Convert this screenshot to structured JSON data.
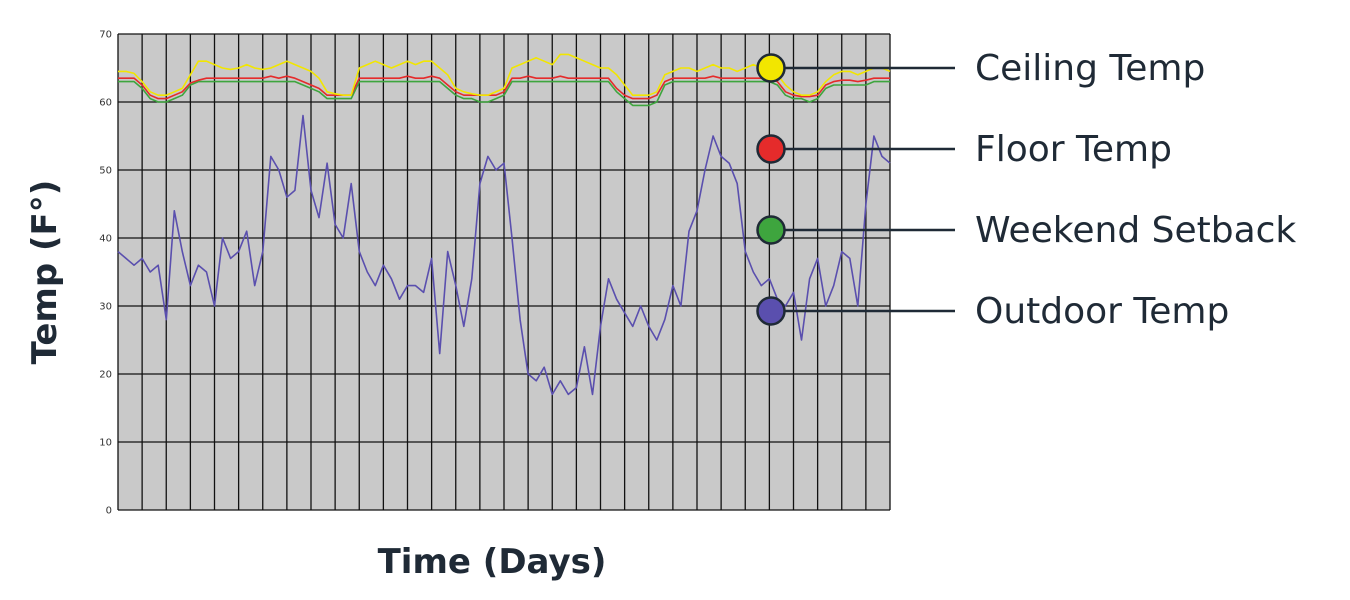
{
  "chart_data": {
    "type": "line",
    "title": "",
    "xlabel": "Time (Days)",
    "ylabel": "Temp (F°)",
    "ylim": [
      0,
      70
    ],
    "yticks": [
      0,
      10,
      20,
      30,
      40,
      50,
      60,
      70
    ],
    "x": [
      0,
      1,
      2,
      3,
      4,
      5,
      6,
      7,
      8,
      9,
      10,
      11,
      12,
      13,
      14,
      15,
      16,
      17,
      18,
      19,
      20,
      21,
      22,
      23,
      24,
      25,
      26,
      27,
      28,
      29,
      30,
      31,
      32,
      33,
      34,
      35,
      36,
      37,
      38,
      39,
      40,
      41,
      42,
      43,
      44,
      45,
      46,
      47,
      48,
      49,
      50,
      51,
      52,
      53,
      54,
      55,
      56,
      57,
      58,
      59,
      60,
      61,
      62,
      63,
      64,
      65,
      66,
      67,
      68,
      69,
      70,
      71,
      72,
      73,
      74,
      75,
      76,
      77,
      78,
      79,
      80,
      81,
      82,
      83,
      84,
      85,
      86,
      87,
      88,
      89,
      90,
      91,
      92,
      93,
      94,
      95,
      96
    ],
    "xlim": [
      0,
      96
    ],
    "grid": true,
    "legend_position": "right",
    "background": "#c9c9c9",
    "series": [
      {
        "name": "Ceiling Temp",
        "color": "#f2e600",
        "values": [
          64.5,
          64.5,
          64.2,
          63,
          61.5,
          61,
          61,
          61.5,
          62,
          64,
          66,
          66,
          65.5,
          65,
          64.8,
          65,
          65.5,
          65,
          64.8,
          65,
          65.5,
          66,
          65.5,
          65,
          64.5,
          63.5,
          61.5,
          61.2,
          61,
          61,
          65,
          65.5,
          66,
          65.5,
          65,
          65.5,
          66,
          65.5,
          66,
          66,
          65,
          64,
          62,
          61.5,
          61.2,
          61,
          61,
          61.5,
          62,
          65,
          65.5,
          66,
          66.5,
          66,
          65.5,
          67,
          67,
          66.5,
          66,
          65.5,
          65,
          65,
          64,
          62.5,
          61,
          61,
          61,
          61.5,
          64,
          64.5,
          65,
          65,
          64.5,
          65,
          65.5,
          65,
          65,
          64.5,
          65,
          65.5,
          65,
          64.5,
          64,
          62.5,
          61.5,
          61,
          61,
          61.5,
          63,
          64,
          64.5,
          64.5,
          64,
          64.5,
          65,
          65,
          64.5
        ]
      },
      {
        "name": "Floor Temp",
        "color": "#e52b2b",
        "values": [
          63.5,
          63.5,
          63.5,
          62.5,
          61,
          60.5,
          60.5,
          61,
          61.5,
          62.8,
          63.2,
          63.5,
          63.5,
          63.5,
          63.5,
          63.5,
          63.5,
          63.5,
          63.5,
          63.8,
          63.5,
          63.8,
          63.5,
          63,
          62.5,
          62,
          61,
          61,
          61,
          61,
          63.5,
          63.5,
          63.5,
          63.5,
          63.5,
          63.5,
          63.8,
          63.5,
          63.5,
          63.8,
          63.5,
          62.5,
          61.5,
          61,
          61,
          61,
          61,
          61,
          61.5,
          63.5,
          63.5,
          63.8,
          63.5,
          63.5,
          63.5,
          63.8,
          63.5,
          63.5,
          63.5,
          63.5,
          63.5,
          63.5,
          62,
          61,
          60.5,
          60.5,
          60.5,
          61,
          63,
          63.5,
          63.5,
          63.5,
          63.5,
          63.5,
          63.8,
          63.5,
          63.5,
          63.5,
          63.5,
          63.5,
          63.5,
          63.5,
          63,
          61.5,
          61,
          60.8,
          60.8,
          61,
          62.5,
          63,
          63.2,
          63.2,
          63,
          63.2,
          63.5,
          63.5,
          63.5
        ]
      },
      {
        "name": "Weekend Setback",
        "color": "#3ea53e",
        "values": [
          63,
          63,
          63,
          62,
          60.5,
          60,
          60,
          60.5,
          61,
          62.5,
          63,
          63,
          63,
          63,
          63,
          63,
          63,
          63,
          63,
          63,
          63,
          63,
          63,
          62.5,
          62,
          61.5,
          60.5,
          60.5,
          60.5,
          60.5,
          63,
          63,
          63,
          63,
          63,
          63,
          63,
          63,
          63,
          63,
          63,
          62,
          61,
          60.5,
          60.5,
          60,
          60,
          60.5,
          61,
          63,
          63,
          63,
          63,
          63,
          63,
          63,
          63,
          63,
          63,
          63,
          63,
          63,
          61.5,
          60.5,
          59.5,
          59.5,
          59.5,
          60,
          62.5,
          63,
          63,
          63,
          63,
          63,
          63,
          63,
          63,
          63,
          63,
          63,
          63,
          63,
          62.5,
          61,
          60.5,
          60.5,
          60,
          60.5,
          62,
          62.5,
          62.5,
          62.5,
          62.5,
          62.5,
          63,
          63,
          63
        ]
      },
      {
        "name": "Outdoor Temp",
        "color": "#5a4fae",
        "values": [
          38,
          37,
          36,
          37,
          35,
          36,
          28,
          44,
          38,
          33,
          36,
          35,
          30,
          40,
          37,
          38,
          41,
          33,
          38,
          52,
          50,
          46,
          47,
          58,
          47,
          43,
          51,
          42,
          40,
          48,
          38,
          35,
          33,
          36,
          34,
          31,
          33,
          33,
          32,
          37,
          23,
          38,
          33,
          27,
          34,
          48,
          52,
          50,
          51,
          40,
          28,
          20,
          19,
          21,
          17,
          19,
          17,
          18,
          24,
          17,
          27,
          34,
          31,
          29,
          27,
          30,
          27,
          25,
          28,
          33,
          30,
          41,
          44,
          50,
          55,
          52,
          51,
          48,
          38,
          35,
          33,
          34,
          31,
          30,
          32,
          25,
          34,
          37,
          30,
          33,
          38,
          37,
          30,
          45,
          55,
          52,
          51
        ]
      }
    ]
  }
}
